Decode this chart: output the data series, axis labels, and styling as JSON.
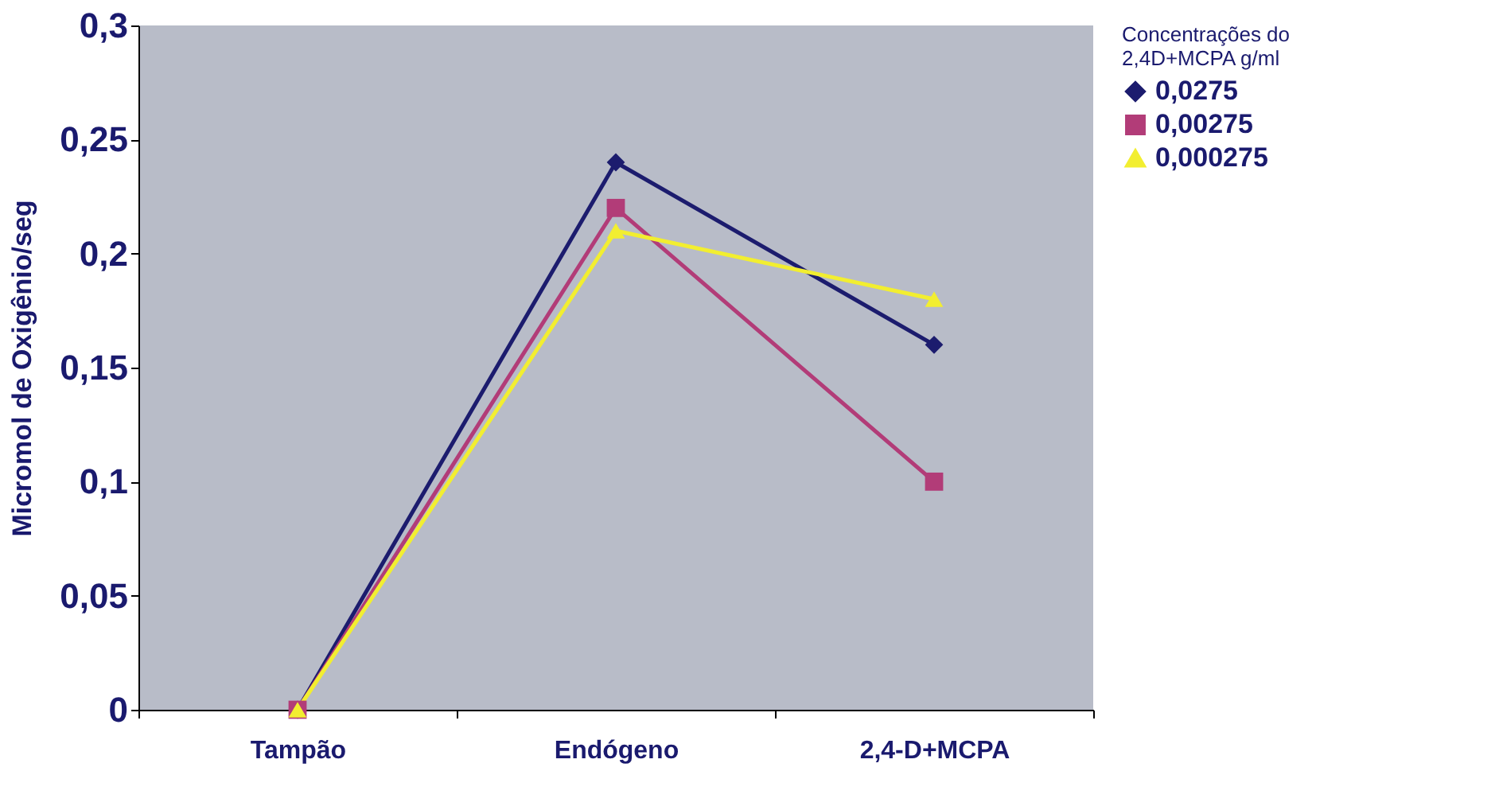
{
  "chart_data": {
    "type": "line",
    "categories": [
      "Tampão",
      "Endógeno",
      "2,4-D+MCPA"
    ],
    "ylabel": "Micromol de Oxigênio/seg",
    "legend_title": "Concentrações do\n2,4D+MCPA g/ml",
    "legend": "right",
    "grid": false,
    "line_style": "solid",
    "ylim": [
      0,
      0.3
    ],
    "yticks": [
      {
        "value": 0,
        "label": "0"
      },
      {
        "value": 0.05,
        "label": "0,05"
      },
      {
        "value": 0.1,
        "label": "0,1"
      },
      {
        "value": 0.15,
        "label": "0,15"
      },
      {
        "value": 0.2,
        "label": "0,2"
      },
      {
        "value": 0.25,
        "label": "0,25"
      },
      {
        "value": 0.3,
        "label": "0,3"
      }
    ],
    "series": [
      {
        "name": "0,0275",
        "color": "#1c1c6e",
        "marker": "diamond",
        "values": [
          0,
          0.24,
          0.16
        ]
      },
      {
        "name": "0,00275",
        "color": "#b23c78",
        "marker": "square",
        "values": [
          0,
          0.22,
          0.1
        ]
      },
      {
        "name": "0,000275",
        "color": "#f2ee30",
        "marker": "triangle",
        "values": [
          0,
          0.21,
          0.18
        ]
      }
    ]
  }
}
